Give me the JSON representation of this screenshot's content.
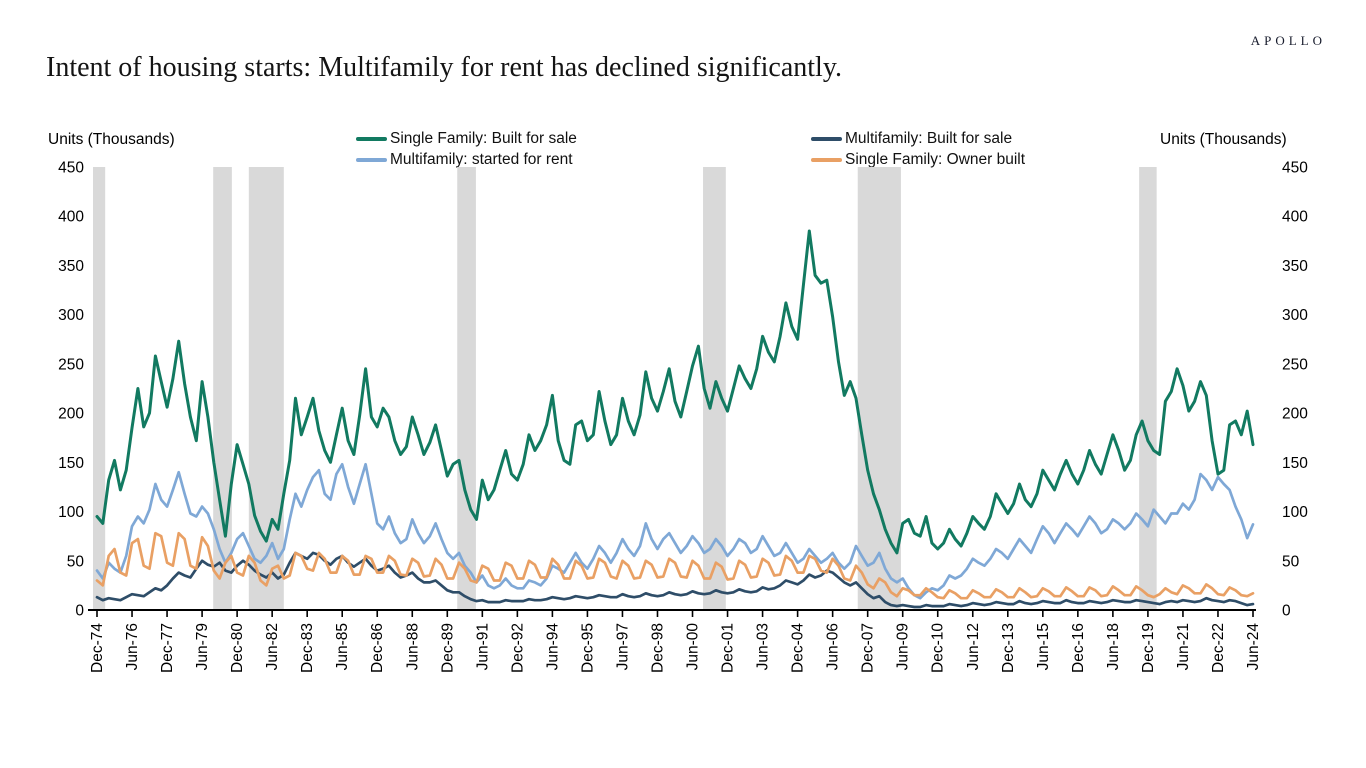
{
  "page": {
    "logo": "APOLLO",
    "title": "Intent of housing starts: Multifamily for rent has declined significantly."
  },
  "axis": {
    "left_label": "Units (Thousands)",
    "right_label": "Units (Thousands)"
  },
  "chart_data": {
    "type": "line",
    "title": "Intent of housing starts: Multifamily for rent has declined significantly.",
    "ylabel": "Units (Thousands)",
    "ylim": [
      0,
      450
    ],
    "y_ticks": [
      0,
      50,
      100,
      150,
      200,
      250,
      300,
      350,
      400,
      450
    ],
    "frequency": "quarterly",
    "x_start": "Dec-74",
    "x_end": "Jun-24",
    "x_tick_every": 6,
    "x_tick_labels": [
      "Dec-74",
      "Jun-76",
      "Dec-77",
      "Jun-79",
      "Dec-80",
      "Jun-82",
      "Dec-83",
      "Jun-85",
      "Dec-86",
      "Jun-88",
      "Dec-89",
      "Jun-91",
      "Dec-92",
      "Jun-94",
      "Dec-95",
      "Jun-97",
      "Dec-98",
      "Jun-00",
      "Dec-01",
      "Jun-03",
      "Dec-04",
      "Jun-06",
      "Dec-07",
      "Jun-09",
      "Dec-10",
      "Jun-12",
      "Dec-13",
      "Jun-15",
      "Dec-16",
      "Jun-18",
      "Dec-19",
      "Jun-21",
      "Dec-22",
      "Jun-24"
    ],
    "grid": false,
    "legend_position": "top",
    "recession_band_color": "#d9d9d9",
    "recession_bands_idx": [
      [
        -0.7,
        1.4
      ],
      [
        19.9,
        23.1
      ],
      [
        26,
        32
      ],
      [
        61.7,
        64.9
      ],
      [
        103.8,
        107.7
      ],
      [
        130.3,
        137.7
      ],
      [
        178.5,
        181.5
      ]
    ],
    "series": [
      {
        "name": "Single Family: Built for sale",
        "color": "#127a61",
        "values": [
          95,
          88,
          132,
          152,
          122,
          142,
          185,
          225,
          186,
          200,
          258,
          232,
          206,
          235,
          273,
          230,
          196,
          172,
          232,
          196,
          150,
          112,
          75,
          128,
          168,
          148,
          128,
          96,
          80,
          70,
          92,
          82,
          118,
          152,
          215,
          178,
          196,
          215,
          182,
          162,
          150,
          178,
          205,
          172,
          158,
          198,
          245,
          196,
          186,
          205,
          196,
          172,
          158,
          166,
          196,
          178,
          158,
          170,
          188,
          162,
          136,
          148,
          152,
          122,
          102,
          92,
          132,
          112,
          122,
          142,
          162,
          138,
          132,
          148,
          178,
          162,
          172,
          188,
          218,
          172,
          152,
          148,
          188,
          192,
          172,
          178,
          222,
          192,
          168,
          178,
          215,
          192,
          178,
          198,
          242,
          215,
          202,
          222,
          245,
          212,
          196,
          222,
          248,
          268,
          225,
          205,
          232,
          215,
          202,
          225,
          248,
          235,
          225,
          245,
          278,
          262,
          252,
          278,
          312,
          288,
          275,
          330,
          385,
          340,
          332,
          335,
          298,
          252,
          218,
          232,
          215,
          178,
          142,
          118,
          102,
          82,
          68,
          58,
          88,
          92,
          78,
          75,
          95,
          68,
          62,
          68,
          82,
          72,
          65,
          78,
          95,
          88,
          82,
          95,
          118,
          108,
          98,
          108,
          128,
          112,
          105,
          118,
          142,
          132,
          122,
          138,
          152,
          138,
          128,
          142,
          162,
          148,
          138,
          158,
          178,
          162,
          142,
          152,
          178,
          192,
          172,
          162,
          158,
          212,
          222,
          245,
          228,
          202,
          212,
          232,
          218,
          172,
          138,
          142,
          188,
          192,
          178,
          202,
          168
        ]
      },
      {
        "name": "Multifamily: started for rent",
        "color": "#7fa8d6",
        "values": [
          40,
          32,
          48,
          42,
          38,
          55,
          85,
          95,
          88,
          102,
          128,
          112,
          105,
          122,
          140,
          118,
          98,
          95,
          105,
          98,
          82,
          62,
          48,
          58,
          72,
          78,
          65,
          52,
          48,
          55,
          68,
          52,
          62,
          92,
          118,
          105,
          122,
          135,
          142,
          118,
          112,
          138,
          148,
          125,
          108,
          128,
          148,
          118,
          88,
          82,
          95,
          78,
          68,
          72,
          92,
          78,
          68,
          75,
          88,
          72,
          58,
          52,
          58,
          45,
          38,
          28,
          35,
          25,
          22,
          25,
          32,
          25,
          22,
          22,
          30,
          28,
          25,
          32,
          45,
          42,
          38,
          48,
          58,
          48,
          42,
          52,
          65,
          58,
          48,
          58,
          72,
          62,
          55,
          65,
          88,
          72,
          62,
          72,
          78,
          68,
          58,
          65,
          75,
          68,
          58,
          62,
          72,
          65,
          55,
          62,
          72,
          68,
          58,
          62,
          75,
          65,
          55,
          58,
          68,
          58,
          48,
          52,
          62,
          55,
          48,
          52,
          58,
          48,
          42,
          48,
          65,
          55,
          45,
          48,
          58,
          42,
          32,
          28,
          32,
          22,
          15,
          12,
          18,
          22,
          20,
          25,
          35,
          32,
          35,
          42,
          52,
          48,
          45,
          52,
          62,
          58,
          52,
          62,
          72,
          65,
          58,
          72,
          85,
          78,
          68,
          78,
          88,
          82,
          75,
          85,
          95,
          88,
          78,
          82,
          92,
          88,
          82,
          88,
          98,
          92,
          85,
          102,
          95,
          88,
          98,
          98,
          108,
          102,
          112,
          138,
          132,
          122,
          135,
          128,
          122,
          105,
          92,
          73,
          87
        ]
      },
      {
        "name": "Multifamily: Built for sale",
        "color": "#2e4d68",
        "values": [
          13,
          10,
          12,
          11,
          10,
          13,
          16,
          15,
          14,
          18,
          22,
          20,
          25,
          32,
          38,
          35,
          33,
          42,
          50,
          46,
          44,
          48,
          40,
          38,
          45,
          50,
          46,
          40,
          36,
          33,
          38,
          32,
          36,
          48,
          58,
          55,
          52,
          58,
          56,
          50,
          46,
          52,
          55,
          48,
          44,
          48,
          52,
          45,
          40,
          42,
          45,
          38,
          33,
          35,
          38,
          32,
          28,
          28,
          30,
          25,
          20,
          18,
          18,
          14,
          11,
          9,
          10,
          8,
          8,
          8,
          10,
          9,
          9,
          9,
          11,
          10,
          10,
          11,
          13,
          12,
          11,
          12,
          14,
          13,
          12,
          13,
          15,
          14,
          13,
          13,
          16,
          14,
          13,
          14,
          17,
          15,
          14,
          15,
          18,
          16,
          15,
          16,
          19,
          17,
          16,
          17,
          20,
          18,
          17,
          18,
          21,
          19,
          18,
          19,
          23,
          21,
          22,
          25,
          30,
          28,
          26,
          30,
          36,
          33,
          35,
          40,
          38,
          33,
          28,
          25,
          28,
          22,
          16,
          12,
          14,
          8,
          5,
          4,
          5,
          4,
          3,
          3,
          5,
          4,
          4,
          4,
          6,
          5,
          4,
          5,
          7,
          6,
          5,
          6,
          8,
          7,
          6,
          6,
          9,
          7,
          6,
          7,
          9,
          8,
          7,
          7,
          10,
          8,
          7,
          7,
          9,
          8,
          7,
          8,
          10,
          9,
          8,
          8,
          10,
          9,
          8,
          7,
          6,
          8,
          9,
          8,
          10,
          9,
          8,
          9,
          12,
          10,
          9,
          8,
          10,
          9,
          7,
          5,
          6
        ]
      },
      {
        "name": "Single Family: Owner built",
        "color": "#e9a064",
        "values": [
          30,
          25,
          55,
          62,
          38,
          35,
          68,
          72,
          45,
          42,
          78,
          75,
          48,
          45,
          78,
          72,
          45,
          42,
          74,
          65,
          40,
          32,
          48,
          55,
          38,
          35,
          55,
          48,
          30,
          25,
          42,
          45,
          32,
          35,
          58,
          55,
          42,
          40,
          58,
          52,
          38,
          38,
          55,
          50,
          36,
          36,
          55,
          52,
          38,
          38,
          55,
          50,
          36,
          35,
          52,
          48,
          34,
          35,
          52,
          46,
          32,
          32,
          48,
          42,
          30,
          28,
          45,
          42,
          30,
          30,
          48,
          45,
          32,
          32,
          50,
          46,
          33,
          33,
          52,
          46,
          32,
          32,
          50,
          45,
          32,
          33,
          52,
          48,
          34,
          32,
          50,
          45,
          32,
          33,
          50,
          46,
          33,
          34,
          52,
          48,
          34,
          33,
          50,
          45,
          32,
          32,
          48,
          44,
          31,
          32,
          50,
          46,
          33,
          34,
          52,
          48,
          35,
          36,
          55,
          50,
          38,
          38,
          55,
          52,
          40,
          38,
          52,
          45,
          32,
          30,
          45,
          38,
          26,
          22,
          32,
          28,
          18,
          14,
          22,
          20,
          15,
          15,
          22,
          18,
          13,
          12,
          20,
          17,
          12,
          12,
          20,
          17,
          13,
          13,
          21,
          18,
          13,
          13,
          22,
          18,
          13,
          14,
          22,
          19,
          14,
          14,
          23,
          19,
          14,
          14,
          23,
          20,
          14,
          15,
          24,
          20,
          15,
          15,
          24,
          20,
          15,
          13,
          16,
          22,
          18,
          16,
          25,
          22,
          17,
          17,
          26,
          22,
          16,
          15,
          23,
          20,
          15,
          14,
          17
        ]
      }
    ]
  }
}
